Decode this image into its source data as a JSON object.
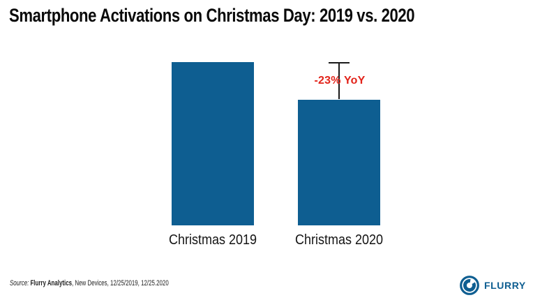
{
  "page": {
    "title": "Smartphone Activations on Christmas Day: 2019 vs. 2020"
  },
  "chart_data": {
    "type": "bar",
    "title": "Smartphone Activations on Christmas Day: 2019 vs. 2020",
    "categories": [
      "Christmas 2019",
      "Christmas 2020"
    ],
    "values": [
      100,
      77
    ],
    "values_note": "No numeric axis shown in image; values indexed with 2019 = 100, 2020 inferred from the -23% YoY annotation and relative bar heights",
    "annotation": "-23% YoY",
    "bar_color": "#0e5e91",
    "annotation_color": "#e2231a",
    "xlabel": "",
    "ylabel": "",
    "grid": false,
    "axes_hidden": true,
    "legend": null
  },
  "source": {
    "prefix": "Source:",
    "name": "Flurry Analytics",
    "rest": ", New Devices, 12/25/2019, 12/25.2020"
  },
  "logo": {
    "wordmark": "FLURRY",
    "icon": "flurry-swirl-icon",
    "color": "#0e5e91"
  },
  "colors": {
    "background": "#ffffff",
    "bar": "#0e5e91",
    "annotation_red": "#e2231a",
    "title_text": "#0a0a0a",
    "marker_line": "#1a1a1a",
    "brand_blue": "#0e5e91"
  }
}
